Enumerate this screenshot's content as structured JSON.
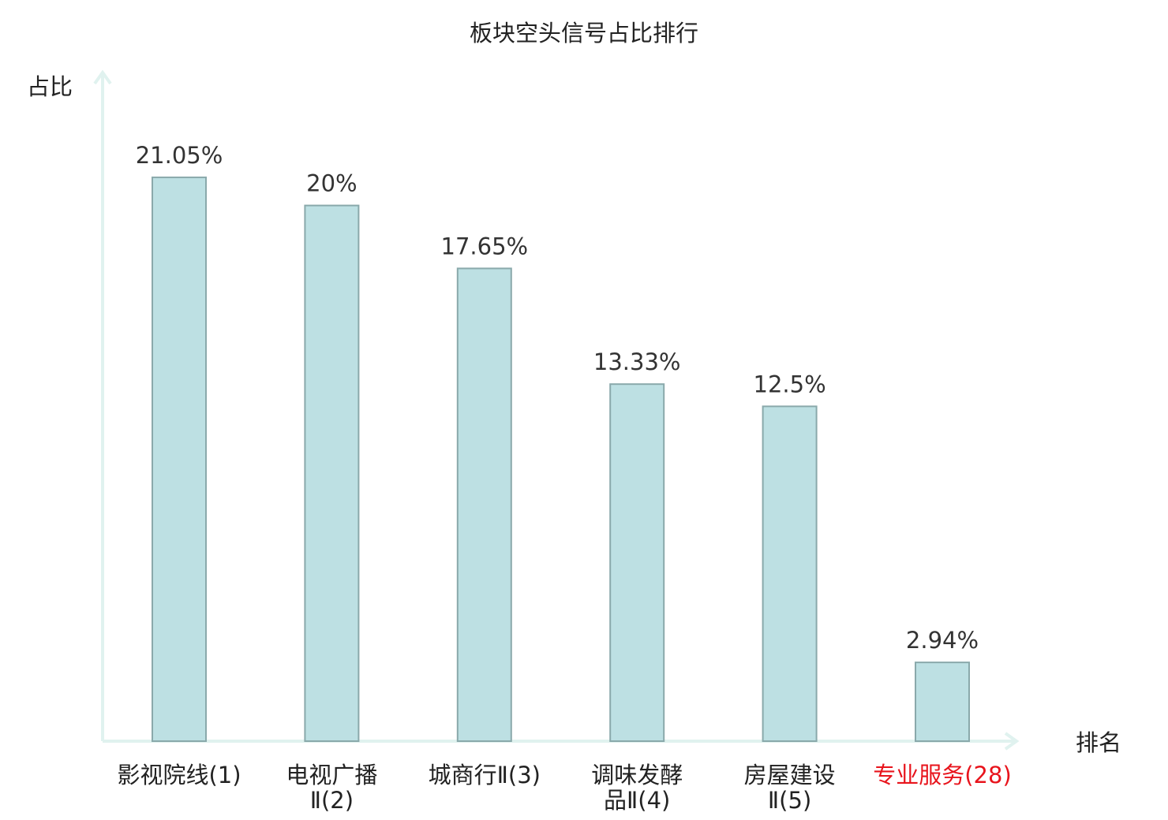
{
  "chart_data": {
    "type": "bar",
    "title": "板块空头信号占比排行",
    "xlabel": "排名",
    "ylabel": "占比",
    "ylim": [
      0,
      25
    ],
    "grid": false,
    "categories": [
      {
        "lines": [
          "影视院线(1)"
        ],
        "highlight": false
      },
      {
        "lines": [
          "电视广播",
          "Ⅱ(2)"
        ],
        "highlight": false
      },
      {
        "lines": [
          "城商行Ⅱ(3)"
        ],
        "highlight": false
      },
      {
        "lines": [
          "调味发酵",
          "品Ⅱ(4)"
        ],
        "highlight": false
      },
      {
        "lines": [
          "房屋建设",
          "Ⅱ(5)"
        ],
        "highlight": false
      },
      {
        "lines": [
          "专业服务(28)"
        ],
        "highlight": true
      }
    ],
    "values": [
      21.05,
      20,
      17.65,
      13.33,
      12.5,
      2.94
    ],
    "value_labels": [
      "21.05%",
      "20%",
      "17.65%",
      "13.33%",
      "12.5%",
      "2.94%"
    ],
    "colors": {
      "bar_fill": "#bde0e3",
      "bar_stroke": "#8aa9ab",
      "axis": "#e0f2ef",
      "highlight": "#e8141c"
    }
  }
}
